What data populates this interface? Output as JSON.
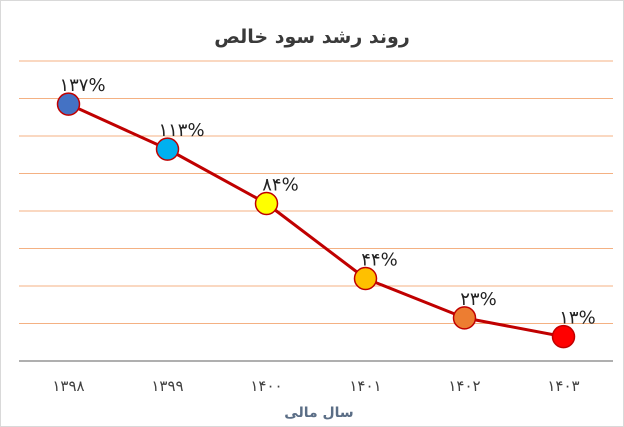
{
  "chart_data": {
    "type": "line",
    "title": "روند رشد سود خالص",
    "xlabel": "سال مالی",
    "ylabel": "",
    "categories": [
      "۱۳۹۸",
      "۱۳۹۹",
      "۱۴۰۰",
      "۱۴۰۱",
      "۱۴۰۲",
      "۱۴۰۳"
    ],
    "series": [
      {
        "values": [
          137,
          113,
          84,
          44,
          23,
          13
        ],
        "labels": [
          "۱۳۷%",
          "۱۱۳%",
          "۸۴%",
          "۴۴%",
          "۲۳%",
          "۱۳%"
        ],
        "line_color": "#c00000",
        "point_colors": [
          "#4472c4",
          "#00b0f0",
          "#ffff00",
          "#ffc000",
          "#ed7d31",
          "#ff0000"
        ]
      }
    ],
    "ylim": [
      0,
      160
    ],
    "grid": true,
    "grid_color": "#f4b183",
    "legend": "none"
  }
}
